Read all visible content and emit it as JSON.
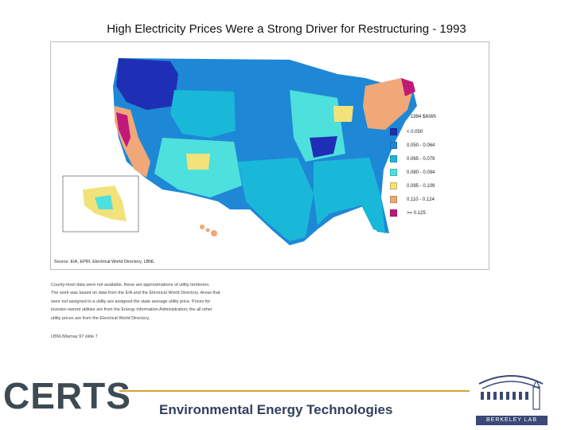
{
  "slide": {
    "title": "High Electricity Prices Were a Strong Driver for Restructuring - 1993"
  },
  "legend": {
    "title": "1994 $/kWh",
    "items": [
      {
        "label": "< 0.050",
        "color": "#1f2fb5"
      },
      {
        "label": "0.050 - 0.064",
        "color": "#1e88d6"
      },
      {
        "label": "0.065 - 0.079",
        "color": "#1ab8d8"
      },
      {
        "label": "0.080 - 0.094",
        "color": "#4ee0dc"
      },
      {
        "label": "0.095 - 0.109",
        "color": "#f2e27a"
      },
      {
        "label": "0.110 - 0.124",
        "color": "#f0a878"
      },
      {
        "label": ">= 0.125",
        "color": "#c0197a"
      }
    ]
  },
  "map": {
    "source": "Source: EIA, EPRI, Electrical World Directory, LBNL"
  },
  "notes": {
    "lines": [
      "County-level data were not available, these are approximations of utility territories.",
      "The work was based on data from the EIA and the Electrical World Directory. Areas that",
      "were not assigned to a utility are assigned the state average utility price. Prices for",
      "investor-owned utilities are from the Energy Information Administration; the all other",
      "utility prices are from the Electrical World Directory."
    ],
    "slide_ref": "LBNL/Marnay 97 slide 7"
  },
  "footer": {
    "logo_text": "CERTS",
    "tagline": "Environmental Energy Technologies",
    "lab_name": "BERKELEY LAB"
  }
}
